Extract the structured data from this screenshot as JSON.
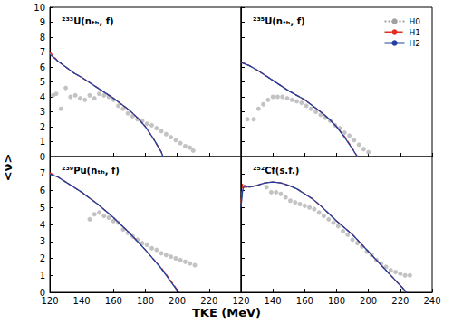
{
  "chart_data": [
    {
      "type": "line",
      "title": "²³³U(nₜₕ, f)",
      "ylabel": "<ν>",
      "xlim": [
        120,
        240
      ],
      "ylim": [
        0,
        10
      ],
      "xticks": [
        120,
        140,
        160,
        180,
        200,
        220,
        240
      ],
      "yticks": [
        0,
        1,
        2,
        3,
        4,
        5,
        6,
        7,
        8,
        9,
        10
      ],
      "tick_labels": "y",
      "grid": false,
      "series": [
        {
          "name": "H0",
          "color": "#a0a0a0",
          "line_style": "dotted",
          "x": [
            120,
            125,
            130,
            135,
            140,
            145,
            150,
            155,
            160,
            165,
            170,
            175,
            180,
            185,
            190,
            191
          ],
          "values": [
            6.9,
            6.4,
            6.0,
            5.6,
            5.3,
            4.95,
            4.6,
            4.25,
            3.9,
            3.5,
            3.1,
            2.6,
            2.0,
            1.2,
            0.3,
            0
          ]
        },
        {
          "name": "H1",
          "color": "#e03020",
          "line_style": "dashed",
          "x": [
            120,
            125,
            130,
            135,
            140,
            145,
            150,
            155,
            160,
            165,
            170,
            175,
            180,
            185,
            190,
            191
          ],
          "values": [
            7.0,
            6.4,
            6.0,
            5.6,
            5.3,
            4.95,
            4.6,
            4.25,
            3.9,
            3.5,
            3.1,
            2.6,
            2.0,
            1.2,
            0.3,
            0
          ]
        },
        {
          "name": "H2",
          "color": "#2040a0",
          "line_style": "solid",
          "x": [
            120,
            125,
            130,
            135,
            140,
            145,
            150,
            155,
            160,
            165,
            170,
            175,
            180,
            185,
            190,
            191
          ],
          "values": [
            6.85,
            6.4,
            6.0,
            5.6,
            5.3,
            4.95,
            4.6,
            4.25,
            3.9,
            3.5,
            3.1,
            2.6,
            2.0,
            1.2,
            0.3,
            0
          ]
        },
        {
          "type": "scatter",
          "marker": "circle",
          "color": "#b4b4b4",
          "x": [
            122,
            124,
            127,
            130,
            133,
            136,
            139,
            142,
            145,
            148,
            151,
            154,
            157,
            160,
            163,
            166,
            169,
            172,
            175,
            178,
            181,
            184,
            187,
            190,
            193,
            196,
            199,
            202,
            205,
            208,
            210
          ],
          "values": [
            4.1,
            4.2,
            3.2,
            4.6,
            4.0,
            4.1,
            3.9,
            3.8,
            4.1,
            3.9,
            4.2,
            4.1,
            4.0,
            3.8,
            3.4,
            3.2,
            2.9,
            2.7,
            2.5,
            2.4,
            2.2,
            2.1,
            1.9,
            1.7,
            1.5,
            1.3,
            1.1,
            0.9,
            0.7,
            0.6,
            0.4
          ]
        }
      ]
    },
    {
      "type": "line",
      "title": "²³⁵U(nₜₕ, f)",
      "legend": "upper right",
      "xlim": [
        120,
        240
      ],
      "ylim": [
        0,
        10
      ],
      "xticks": [
        120,
        140,
        160,
        180,
        200,
        220,
        240
      ],
      "yticks": [
        0,
        1,
        2,
        3,
        4,
        5,
        6,
        7,
        8,
        9,
        10
      ],
      "tick_labels": false,
      "grid": false,
      "series": [
        {
          "name": "H0",
          "color": "#a0a0a0",
          "line_style": "dotted",
          "x": [
            120,
            125,
            130,
            135,
            140,
            145,
            150,
            155,
            160,
            165,
            170,
            175,
            180,
            185,
            190,
            193
          ],
          "values": [
            6.3,
            6.1,
            5.8,
            5.45,
            5.1,
            4.75,
            4.4,
            4.1,
            3.8,
            3.4,
            3.0,
            2.55,
            2.0,
            1.3,
            0.5,
            0
          ]
        },
        {
          "name": "H1",
          "color": "#e03020",
          "line_style": "dashed",
          "x": [
            120,
            125,
            130,
            135,
            140,
            145,
            150,
            155,
            160,
            165,
            170,
            175,
            180,
            185,
            190,
            193
          ],
          "values": [
            6.35,
            6.1,
            5.8,
            5.45,
            5.1,
            4.75,
            4.4,
            4.1,
            3.8,
            3.4,
            3.0,
            2.55,
            2.0,
            1.35,
            0.55,
            0
          ]
        },
        {
          "name": "H2",
          "color": "#2040a0",
          "line_style": "solid",
          "x": [
            120,
            125,
            130,
            135,
            140,
            145,
            150,
            155,
            160,
            165,
            170,
            175,
            180,
            185,
            190,
            193
          ],
          "values": [
            6.3,
            6.1,
            5.8,
            5.45,
            5.1,
            4.75,
            4.4,
            4.1,
            3.8,
            3.4,
            3.0,
            2.55,
            2.0,
            1.3,
            0.5,
            0
          ]
        },
        {
          "type": "scatter",
          "marker": "circle",
          "color": "#b4b4b4",
          "x": [
            124,
            128,
            131,
            134,
            137,
            140,
            143,
            146,
            149,
            152,
            155,
            158,
            161,
            164,
            167,
            170,
            173,
            176,
            179,
            182,
            185,
            188,
            191,
            194,
            197,
            200
          ],
          "values": [
            2.5,
            2.5,
            3.2,
            3.5,
            3.8,
            4.0,
            4.0,
            4.0,
            3.9,
            3.8,
            3.7,
            3.6,
            3.4,
            3.2,
            3.0,
            2.8,
            2.6,
            2.4,
            2.1,
            1.9,
            1.6,
            1.4,
            1.1,
            0.8,
            0.5,
            0.3
          ]
        }
      ]
    },
    {
      "type": "line",
      "title": "²³⁹Pu(nₜₕ, f)",
      "xlabel": "TKE (MeV)",
      "xlim": [
        120,
        240
      ],
      "ylim": [
        0,
        8
      ],
      "xticks": [
        120,
        140,
        160,
        180,
        200,
        220
      ],
      "yticks": [
        0,
        1,
        2,
        3,
        4,
        5,
        6,
        7
      ],
      "tick_labels": true,
      "grid": false,
      "series": [
        {
          "name": "H0",
          "color": "#a0a0a0",
          "line_style": "dotted",
          "x": [
            120,
            125,
            130,
            135,
            140,
            145,
            150,
            155,
            160,
            165,
            170,
            175,
            180,
            185,
            190,
            195,
            200,
            201
          ],
          "values": [
            7.0,
            6.8,
            6.5,
            6.2,
            5.9,
            5.55,
            5.2,
            4.8,
            4.4,
            3.95,
            3.5,
            3.0,
            2.5,
            1.95,
            1.4,
            0.75,
            0.1,
            0
          ]
        },
        {
          "name": "H1",
          "color": "#e03020",
          "line_style": "dashed",
          "x": [
            120,
            125,
            130,
            135,
            140,
            145,
            150,
            155,
            160,
            165,
            170,
            175,
            180,
            185,
            190,
            195,
            200,
            201
          ],
          "values": [
            7.05,
            6.8,
            6.5,
            6.2,
            5.9,
            5.55,
            5.2,
            4.8,
            4.4,
            3.95,
            3.5,
            3.0,
            2.5,
            1.95,
            1.45,
            0.8,
            0.15,
            0
          ]
        },
        {
          "name": "H2",
          "color": "#2040a0",
          "line_style": "solid",
          "x": [
            120,
            125,
            130,
            135,
            140,
            145,
            150,
            155,
            160,
            165,
            170,
            175,
            180,
            185,
            190,
            195,
            200,
            201
          ],
          "values": [
            6.95,
            6.8,
            6.5,
            6.2,
            5.9,
            5.55,
            5.2,
            4.8,
            4.4,
            3.95,
            3.5,
            3.0,
            2.5,
            1.95,
            1.4,
            0.75,
            0.1,
            0
          ]
        },
        {
          "type": "scatter",
          "marker": "circle",
          "color": "#b4b4b4",
          "x": [
            145,
            148,
            151,
            154,
            157,
            160,
            163,
            166,
            169,
            172,
            175,
            178,
            181,
            184,
            187,
            190,
            193,
            196,
            199,
            202,
            205,
            208,
            211
          ],
          "values": [
            4.3,
            4.6,
            4.7,
            4.5,
            4.4,
            4.2,
            4.1,
            3.7,
            3.5,
            3.3,
            3.1,
            2.9,
            2.8,
            2.6,
            2.5,
            2.3,
            2.2,
            2.1,
            2.0,
            1.9,
            1.8,
            1.7,
            1.6
          ]
        }
      ]
    },
    {
      "type": "line",
      "title": "²⁵²Cf(s.f.)",
      "xlim": [
        120,
        240
      ],
      "ylim": [
        0,
        8
      ],
      "xticks": [
        120,
        140,
        160,
        180,
        200,
        220,
        240
      ],
      "yticks": [
        0,
        1,
        2,
        3,
        4,
        5,
        6,
        7
      ],
      "tick_labels": "x",
      "grid": false,
      "series": [
        {
          "name": "H0",
          "color": "#a0a0a0",
          "line_style": "dotted",
          "x": [
            120,
            121,
            122,
            125,
            130,
            135,
            140,
            145,
            150,
            155,
            160,
            165,
            170,
            175,
            180,
            185,
            190,
            195,
            200,
            205,
            210,
            215,
            220,
            224
          ],
          "values": [
            5.1,
            6.0,
            6.3,
            6.2,
            6.3,
            6.45,
            6.5,
            6.45,
            6.3,
            6.1,
            5.8,
            5.5,
            5.1,
            4.65,
            4.2,
            3.8,
            3.4,
            2.9,
            2.4,
            1.9,
            1.4,
            0.9,
            0.4,
            0
          ]
        },
        {
          "name": "H1",
          "color": "#e03020",
          "line_style": "dashed",
          "x": [
            120,
            121,
            122,
            125,
            130,
            135,
            140,
            145,
            150,
            155,
            160,
            165,
            170,
            175,
            180,
            185,
            190,
            195,
            200,
            205,
            210,
            215,
            220,
            224
          ],
          "values": [
            5.3,
            6.4,
            6.2,
            6.2,
            6.3,
            6.45,
            6.5,
            6.45,
            6.3,
            6.1,
            5.8,
            5.5,
            5.1,
            4.65,
            4.2,
            3.8,
            3.4,
            2.9,
            2.4,
            1.9,
            1.4,
            0.9,
            0.4,
            0
          ]
        },
        {
          "name": "H2",
          "color": "#2040a0",
          "line_style": "solid",
          "x": [
            120,
            121,
            122,
            125,
            130,
            135,
            140,
            145,
            150,
            155,
            160,
            165,
            170,
            175,
            180,
            185,
            190,
            195,
            200,
            205,
            210,
            215,
            220,
            224
          ],
          "values": [
            5.0,
            6.0,
            6.3,
            6.2,
            6.3,
            6.45,
            6.5,
            6.45,
            6.3,
            6.1,
            5.8,
            5.5,
            5.1,
            4.65,
            4.2,
            3.8,
            3.4,
            2.9,
            2.4,
            1.9,
            1.4,
            0.9,
            0.4,
            0
          ]
        },
        {
          "type": "scatter",
          "marker": "circle",
          "color": "#b4b4b4",
          "x": [
            136,
            139,
            142,
            145,
            148,
            151,
            154,
            157,
            160,
            163,
            166,
            169,
            172,
            175,
            178,
            181,
            184,
            187,
            190,
            193,
            196,
            199,
            202,
            205,
            208,
            211,
            214,
            217,
            220,
            223,
            226
          ],
          "values": [
            6.2,
            5.9,
            5.9,
            5.8,
            5.6,
            5.4,
            5.3,
            5.2,
            5.1,
            5.0,
            4.9,
            4.7,
            4.5,
            4.3,
            4.1,
            3.9,
            3.6,
            3.4,
            3.1,
            2.9,
            2.7,
            2.4,
            2.2,
            1.9,
            1.7,
            1.5,
            1.3,
            1.2,
            1.1,
            1.0,
            1.0
          ]
        }
      ]
    }
  ]
}
